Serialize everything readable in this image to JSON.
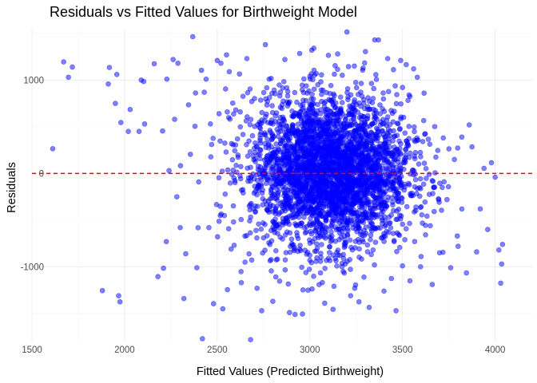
{
  "chart_data": {
    "type": "scatter",
    "title": "Residuals vs Fitted Values for Birthweight Model",
    "xlabel": "Fitted Values (Predicted Birthweight)",
    "ylabel": "Residuals",
    "xlim": [
      1500,
      4200
    ],
    "ylim": [
      -1800,
      1550
    ],
    "x_major_ticks": [
      1500,
      2000,
      2500,
      3000,
      3500,
      4000
    ],
    "x_minor_ticks": [
      1750,
      2250,
      2750,
      3250,
      3750
    ],
    "x_tick_labels": [
      "1500",
      "2000",
      "2500",
      "3000",
      "3500",
      "4000"
    ],
    "y_major_ticks": [
      1000,
      0,
      -1000
    ],
    "y_minor_ticks": [
      1500,
      500,
      -500,
      -1500
    ],
    "y_tick_labels": [
      "1000",
      "0",
      "-1000"
    ],
    "point_color": "#0000ff",
    "point_alpha": 0.5,
    "reference_line": {
      "y": 0,
      "color": "#ff0000",
      "style": "dashed"
    },
    "grid": true,
    "series": [
      {
        "values_note_free": true,
        "points": [
          [
            1612,
            265
          ],
          [
            1671,
            1195
          ],
          [
            1697,
            1030
          ],
          [
            1718,
            1140
          ],
          [
            1880,
            -1255
          ],
          [
            1912,
            958
          ],
          [
            1918,
            1135
          ],
          [
            1950,
            750
          ],
          [
            1958,
            1060
          ],
          [
            1968,
            -1310
          ],
          [
            1975,
            -1375
          ],
          [
            1980,
            545
          ],
          [
            2020,
            450
          ],
          [
            2030,
            685
          ],
          [
            2078,
            450
          ],
          [
            2090,
            1000
          ],
          [
            2103,
            985
          ],
          [
            2108,
            530
          ],
          [
            2160,
            1175
          ],
          [
            2180,
            -1105
          ],
          [
            2205,
            455
          ],
          [
            2210,
            -1015
          ],
          [
            2225,
            -730
          ],
          [
            2228,
            1010
          ],
          [
            2240,
            30
          ],
          [
            2262,
            1220
          ],
          [
            2270,
            580
          ],
          [
            2282,
            -250
          ],
          [
            2288,
            1180
          ],
          [
            2300,
            -580
          ],
          [
            2320,
            -1340
          ],
          [
            2330,
            -860
          ],
          [
            2345,
            735
          ],
          [
            2355,
            205
          ],
          [
            2368,
            1465
          ],
          [
            2380,
            505
          ],
          [
            2390,
            -1010
          ],
          [
            2400,
            -90
          ],
          [
            2415,
            1105
          ],
          [
            2420,
            -1770
          ],
          [
            2430,
            870
          ],
          [
            2440,
            1010
          ],
          [
            2455,
            -580
          ],
          [
            2470,
            310
          ],
          [
            2480,
            -1395
          ],
          [
            2500,
            1210
          ],
          [
            2510,
            640
          ],
          [
            2520,
            1180
          ],
          [
            2530,
            -1450
          ],
          [
            2545,
            905
          ],
          [
            2550,
            1270
          ],
          [
            2555,
            -1245
          ],
          [
            2565,
            1090
          ],
          [
            2575,
            -810
          ],
          [
            2588,
            -520
          ],
          [
            2600,
            680
          ],
          [
            2620,
            1065
          ],
          [
            2630,
            -1170
          ],
          [
            2650,
            -950
          ],
          [
            2660,
            1230
          ],
          [
            2680,
            -1780
          ],
          [
            2700,
            270
          ],
          [
            2715,
            -1230
          ],
          [
            2740,
            -1470
          ],
          [
            2760,
            1380
          ],
          [
            2780,
            1010
          ],
          [
            2800,
            -1370
          ],
          [
            2820,
            230
          ],
          [
            2840,
            600
          ],
          [
            2865,
            1220
          ],
          [
            2890,
            -1490
          ],
          [
            2920,
            -1510
          ],
          [
            2945,
            1285
          ],
          [
            2960,
            -1505
          ],
          [
            2990,
            -1250
          ],
          [
            3010,
            1320
          ],
          [
            3050,
            -1190
          ],
          [
            3080,
            -1390
          ],
          [
            3100,
            1265
          ],
          [
            3125,
            -1455
          ],
          [
            3150,
            1280
          ],
          [
            3180,
            -1050
          ],
          [
            3200,
            1515
          ],
          [
            3220,
            -1310
          ],
          [
            3240,
            1150
          ],
          [
            3265,
            -1375
          ],
          [
            3300,
            1305
          ],
          [
            3320,
            -1435
          ],
          [
            3350,
            1430
          ],
          [
            3370,
            1430
          ],
          [
            3400,
            -1260
          ],
          [
            3420,
            1230
          ],
          [
            3440,
            -1125
          ],
          [
            3465,
            -1470
          ],
          [
            3490,
            1210
          ],
          [
            3500,
            -990
          ],
          [
            3520,
            1165
          ],
          [
            3540,
            -1150
          ],
          [
            3560,
            1120
          ],
          [
            3580,
            1030
          ],
          [
            3600,
            -890
          ],
          [
            3620,
            420
          ],
          [
            3650,
            -560
          ],
          [
            3680,
            175
          ],
          [
            3700,
            -850
          ],
          [
            3720,
            380
          ],
          [
            3740,
            -280
          ],
          [
            3760,
            -1010
          ],
          [
            3780,
            150
          ],
          [
            3800,
            -780
          ],
          [
            3820,
            390
          ],
          [
            3845,
            -1065
          ],
          [
            3860,
            520
          ],
          [
            3875,
            285
          ],
          [
            3900,
            -840
          ],
          [
            3920,
            -380
          ],
          [
            3940,
            55
          ],
          [
            3960,
            -600
          ],
          [
            3980,
            115
          ],
          [
            4000,
            -40
          ],
          [
            4020,
            -820
          ],
          [
            4030,
            -1175
          ],
          [
            4035,
            -970
          ],
          [
            4040,
            -760
          ]
        ]
      }
    ]
  }
}
